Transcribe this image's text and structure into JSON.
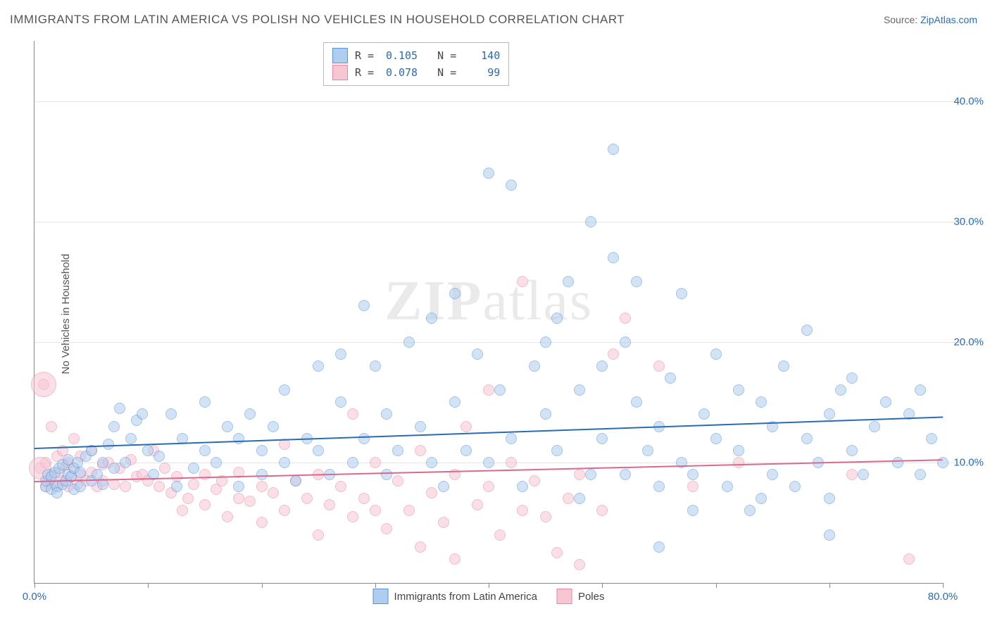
{
  "title": "IMMIGRANTS FROM LATIN AMERICA VS POLISH NO VEHICLES IN HOUSEHOLD CORRELATION CHART",
  "source_label": "Source: ",
  "source_name": "ZipAtlas.com",
  "ylabel": "No Vehicles in Household",
  "watermark": "ZIPatlas",
  "chart": {
    "type": "scatter",
    "xlim": [
      0,
      80
    ],
    "ylim": [
      0,
      45
    ],
    "x_ticks": [
      0,
      10,
      20,
      30,
      40,
      50,
      60,
      70,
      80
    ],
    "x_tick_labels": {
      "0": "0.0%",
      "80": "80.0%"
    },
    "y_ticks": [
      10,
      20,
      30,
      40
    ],
    "y_tick_labels": [
      "10.0%",
      "20.0%",
      "30.0%",
      "40.0%"
    ],
    "background_color": "#ffffff",
    "grid_color": "#e6e6e6",
    "axis_color": "#888888",
    "label_color": "#2b6cb0",
    "point_radius": 8,
    "series": [
      {
        "name": "Immigrants from Latin America",
        "fill": "#aecdf0",
        "stroke": "#5a93d4",
        "fill_opacity": 0.55,
        "R": "0.105",
        "N": "140",
        "trend": {
          "y_at_x0": 11.2,
          "y_at_xmax": 13.8,
          "color": "#2b6cb0",
          "width": 2
        },
        "points": [
          [
            1,
            8
          ],
          [
            1,
            8.5
          ],
          [
            1.2,
            9
          ],
          [
            1.5,
            7.8
          ],
          [
            1.5,
            8.8
          ],
          [
            1.8,
            9.2
          ],
          [
            2,
            8
          ],
          [
            2,
            7.5
          ],
          [
            2.2,
            9.5
          ],
          [
            2.5,
            8.2
          ],
          [
            2.5,
            9.8
          ],
          [
            2.8,
            8.5
          ],
          [
            3,
            9
          ],
          [
            3,
            10.2
          ],
          [
            3.2,
            8.8
          ],
          [
            3.5,
            9.5
          ],
          [
            3.5,
            7.8
          ],
          [
            3.8,
            10
          ],
          [
            4,
            8
          ],
          [
            4,
            9.2
          ],
          [
            4.5,
            10.5
          ],
          [
            5,
            8.5
          ],
          [
            5,
            11
          ],
          [
            5.5,
            9
          ],
          [
            6,
            10
          ],
          [
            6,
            8.2
          ],
          [
            6.5,
            11.5
          ],
          [
            7,
            9.5
          ],
          [
            7,
            13
          ],
          [
            7.5,
            14.5
          ],
          [
            8,
            10
          ],
          [
            8.5,
            12
          ],
          [
            9,
            13.5
          ],
          [
            9.5,
            14
          ],
          [
            10,
            11
          ],
          [
            10.5,
            9
          ],
          [
            11,
            10.5
          ],
          [
            12,
            14
          ],
          [
            12.5,
            8
          ],
          [
            13,
            12
          ],
          [
            14,
            9.5
          ],
          [
            15,
            11
          ],
          [
            15,
            15
          ],
          [
            16,
            10
          ],
          [
            17,
            13
          ],
          [
            18,
            12
          ],
          [
            18,
            8
          ],
          [
            19,
            14
          ],
          [
            20,
            11
          ],
          [
            20,
            9
          ],
          [
            21,
            13
          ],
          [
            22,
            10
          ],
          [
            22,
            16
          ],
          [
            23,
            8.5
          ],
          [
            24,
            12
          ],
          [
            25,
            11
          ],
          [
            25,
            18
          ],
          [
            26,
            9
          ],
          [
            27,
            19
          ],
          [
            27,
            15
          ],
          [
            28,
            10
          ],
          [
            29,
            23
          ],
          [
            29,
            12
          ],
          [
            30,
            18
          ],
          [
            31,
            14
          ],
          [
            31,
            9
          ],
          [
            32,
            11
          ],
          [
            33,
            20
          ],
          [
            34,
            13
          ],
          [
            35,
            22
          ],
          [
            35,
            10
          ],
          [
            36,
            8
          ],
          [
            37,
            24
          ],
          [
            37,
            15
          ],
          [
            38,
            11
          ],
          [
            39,
            19
          ],
          [
            40,
            34
          ],
          [
            40,
            10
          ],
          [
            41,
            16
          ],
          [
            42,
            12
          ],
          [
            43,
            8
          ],
          [
            44,
            18
          ],
          [
            45,
            14
          ],
          [
            45,
            20
          ],
          [
            46,
            11
          ],
          [
            47,
            25
          ],
          [
            48,
            16
          ],
          [
            48,
            7
          ],
          [
            49,
            30
          ],
          [
            49,
            9
          ],
          [
            50,
            18
          ],
          [
            50,
            12
          ],
          [
            51,
            36
          ],
          [
            51,
            27
          ],
          [
            52,
            9
          ],
          [
            53,
            15
          ],
          [
            53,
            25
          ],
          [
            54,
            11
          ],
          [
            55,
            8
          ],
          [
            55,
            13
          ],
          [
            56,
            17
          ],
          [
            57,
            10
          ],
          [
            57,
            24
          ],
          [
            58,
            9
          ],
          [
            59,
            14
          ],
          [
            60,
            12
          ],
          [
            60,
            19
          ],
          [
            61,
            8
          ],
          [
            62,
            16
          ],
          [
            62,
            11
          ],
          [
            63,
            6
          ],
          [
            64,
            15
          ],
          [
            65,
            9
          ],
          [
            65,
            13
          ],
          [
            66,
            18
          ],
          [
            67,
            8
          ],
          [
            68,
            12
          ],
          [
            68,
            21
          ],
          [
            69,
            10
          ],
          [
            70,
            14
          ],
          [
            70,
            7
          ],
          [
            71,
            16
          ],
          [
            72,
            11
          ],
          [
            72,
            17
          ],
          [
            73,
            9
          ],
          [
            74,
            13
          ],
          [
            75,
            15
          ],
          [
            76,
            10
          ],
          [
            77,
            14
          ],
          [
            78,
            16
          ],
          [
            78,
            9
          ],
          [
            79,
            12
          ],
          [
            80,
            10
          ],
          [
            42,
            33
          ],
          [
            46,
            22
          ],
          [
            52,
            20
          ],
          [
            58,
            6
          ],
          [
            64,
            7
          ],
          [
            70,
            4
          ],
          [
            55,
            3
          ]
        ]
      },
      {
        "name": "Poles",
        "fill": "#f7c6d2",
        "stroke": "#e48aa4",
        "fill_opacity": 0.55,
        "R": "0.078",
        "N": "99",
        "trend": {
          "y_at_x0": 8.5,
          "y_at_xmax": 10.3,
          "color": "#d96a8e",
          "width": 2
        },
        "points": [
          [
            0.5,
            9.5
          ],
          [
            0.8,
            16.5
          ],
          [
            1,
            8
          ],
          [
            1,
            10
          ],
          [
            1.2,
            8.5
          ],
          [
            1.5,
            13
          ],
          [
            1.5,
            9
          ],
          [
            1.8,
            8.2
          ],
          [
            2,
            10.5
          ],
          [
            2,
            8
          ],
          [
            2.2,
            9.2
          ],
          [
            2.5,
            8.5
          ],
          [
            2.5,
            11
          ],
          [
            2.8,
            9.8
          ],
          [
            3,
            8
          ],
          [
            3,
            10
          ],
          [
            3.2,
            8.8
          ],
          [
            3.5,
            9.5
          ],
          [
            3.5,
            12
          ],
          [
            3.8,
            8.2
          ],
          [
            4,
            9
          ],
          [
            4,
            10.5
          ],
          [
            4.5,
            8.5
          ],
          [
            5,
            9.2
          ],
          [
            5,
            11
          ],
          [
            5.5,
            8
          ],
          [
            6,
            9.8
          ],
          [
            6,
            8.5
          ],
          [
            6.5,
            10
          ],
          [
            7,
            8.2
          ],
          [
            7.5,
            9.5
          ],
          [
            8,
            8
          ],
          [
            8.5,
            10.2
          ],
          [
            9,
            8.8
          ],
          [
            9.5,
            9
          ],
          [
            10,
            8.5
          ],
          [
            10.5,
            11
          ],
          [
            11,
            8
          ],
          [
            11.5,
            9.5
          ],
          [
            12,
            7.5
          ],
          [
            12.5,
            8.8
          ],
          [
            13,
            6
          ],
          [
            13.5,
            7
          ],
          [
            14,
            8.2
          ],
          [
            15,
            6.5
          ],
          [
            15,
            9
          ],
          [
            16,
            7.8
          ],
          [
            16.5,
            8.5
          ],
          [
            17,
            5.5
          ],
          [
            18,
            7
          ],
          [
            18,
            9.2
          ],
          [
            19,
            6.8
          ],
          [
            20,
            8
          ],
          [
            20,
            5
          ],
          [
            21,
            7.5
          ],
          [
            22,
            6
          ],
          [
            22,
            11.5
          ],
          [
            23,
            8.5
          ],
          [
            24,
            7
          ],
          [
            25,
            9
          ],
          [
            25,
            4
          ],
          [
            26,
            6.5
          ],
          [
            27,
            8
          ],
          [
            28,
            5.5
          ],
          [
            28,
            14
          ],
          [
            29,
            7
          ],
          [
            30,
            10
          ],
          [
            30,
            6
          ],
          [
            31,
            4.5
          ],
          [
            32,
            8.5
          ],
          [
            33,
            6
          ],
          [
            34,
            11
          ],
          [
            34,
            3
          ],
          [
            35,
            7.5
          ],
          [
            36,
            5
          ],
          [
            37,
            9
          ],
          [
            37,
            2
          ],
          [
            38,
            13
          ],
          [
            39,
            6.5
          ],
          [
            40,
            16
          ],
          [
            40,
            8
          ],
          [
            41,
            4
          ],
          [
            42,
            10
          ],
          [
            43,
            25
          ],
          [
            43,
            6
          ],
          [
            44,
            8.5
          ],
          [
            45,
            5.5
          ],
          [
            46,
            2.5
          ],
          [
            47,
            7
          ],
          [
            48,
            9
          ],
          [
            48,
            1.5
          ],
          [
            50,
            6
          ],
          [
            51,
            19
          ],
          [
            52,
            22
          ],
          [
            55,
            18
          ],
          [
            58,
            8
          ],
          [
            62,
            10
          ],
          [
            72,
            9
          ],
          [
            77,
            2
          ]
        ],
        "large_points": [
          {
            "x": 0.8,
            "y": 16.5,
            "r": 18
          },
          {
            "x": 0.5,
            "y": 9.5,
            "r": 16
          }
        ]
      }
    ]
  },
  "stats_labels": {
    "R": "R =",
    "N": "N ="
  },
  "bottom_legend": [
    "Immigrants from Latin America",
    "Poles"
  ]
}
